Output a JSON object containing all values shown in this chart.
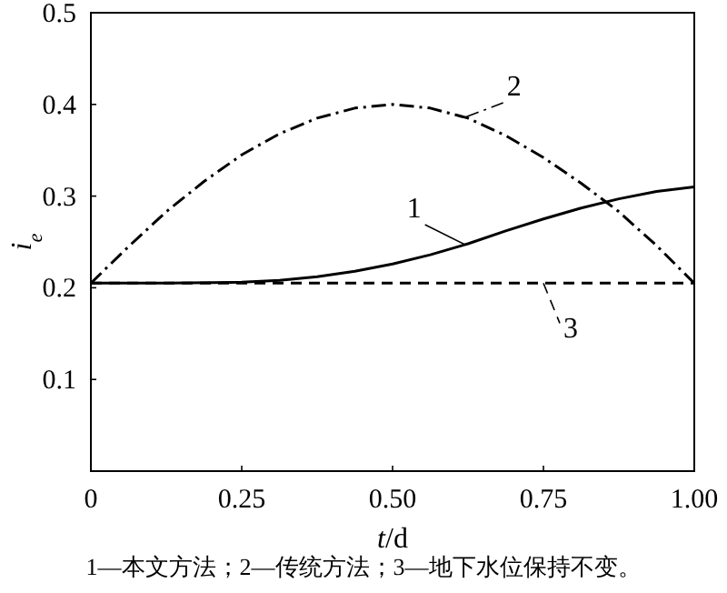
{
  "chart_data": {
    "type": "line",
    "xlabel": "*t*/d",
    "ylabel": "*i*$_{e}$",
    "xlim": [
      0,
      1
    ],
    "ylim": [
      0,
      0.5
    ],
    "xticks": [
      0,
      0.25,
      {
        "value": 0.5,
        "label": "0.50"
      },
      0.75,
      {
        "value": 1,
        "label": "1.00"
      }
    ],
    "yticks": [
      {
        "value": 0,
        "label": null
      },
      0.1,
      0.2,
      0.3,
      0.4,
      0.5
    ],
    "series": [
      {
        "name": "1",
        "color": "#000000",
        "line_style": "solid",
        "x": [
          0,
          0.125,
          0.25,
          0.3125,
          0.375,
          0.4375,
          0.5,
          0.5625,
          0.625,
          0.6875,
          0.75,
          0.8125,
          0.875,
          0.9375,
          1
        ],
        "values": [
          0.205,
          0.205,
          0.206,
          0.208,
          0.212,
          0.218,
          0.226,
          0.236,
          0.248,
          0.262,
          0.275,
          0.287,
          0.297,
          0.305,
          0.31
        ]
      },
      {
        "name": "2",
        "color": "#000000",
        "line_style": "dashdot",
        "x": [
          0,
          0.0625,
          0.125,
          0.1875,
          0.25,
          0.3125,
          0.375,
          0.4375,
          0.5,
          0.5625,
          0.625,
          0.6875,
          0.75,
          0.8125,
          0.875,
          0.9375,
          1
        ],
        "values": [
          0.205,
          0.245,
          0.283,
          0.316,
          0.345,
          0.368,
          0.385,
          0.396,
          0.4,
          0.396,
          0.385,
          0.366,
          0.342,
          0.314,
          0.283,
          0.246,
          0.205
        ]
      },
      {
        "name": "3",
        "color": "#000000",
        "line_style": "dashed",
        "x": [
          0,
          1
        ],
        "values": [
          0.205,
          0.205
        ]
      }
    ],
    "annotations": [
      "1—本文方法；2—传统方法；3—地下水位保持不变。"
    ]
  }
}
